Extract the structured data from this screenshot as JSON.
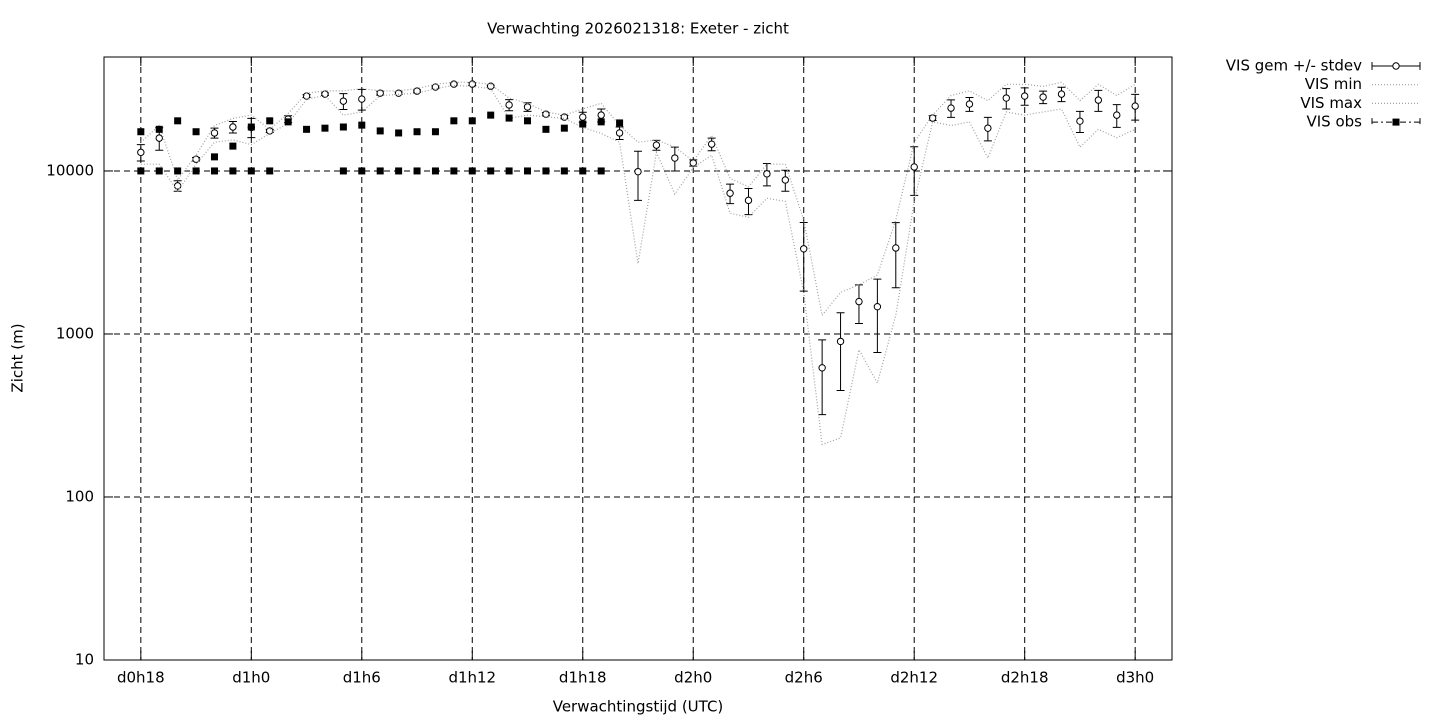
{
  "chart_data": {
    "type": "line",
    "title": "Verwachting 2026021318: Exeter - zicht",
    "xlabel": "Verwachtingstijd (UTC)",
    "ylabel": "Zicht (m)",
    "x": [
      18,
      19,
      20,
      21,
      22,
      23,
      24,
      25,
      26,
      27,
      28,
      29,
      30,
      31,
      32,
      33,
      34,
      35,
      36,
      37,
      38,
      39,
      40,
      41,
      42,
      43,
      44,
      45,
      46,
      47,
      48,
      49,
      50,
      51,
      52,
      53,
      54,
      55,
      56,
      57,
      58,
      59,
      60,
      61,
      62,
      63,
      64,
      65,
      66,
      67,
      68,
      69,
      70,
      71,
      72
    ],
    "xlim": [
      16,
      74
    ],
    "xticks": [
      {
        "value": 18,
        "label": "d0h18"
      },
      {
        "value": 24,
        "label": "d1h0"
      },
      {
        "value": 30,
        "label": "d1h6"
      },
      {
        "value": 36,
        "label": "d1h12"
      },
      {
        "value": 42,
        "label": "d1h18"
      },
      {
        "value": 48,
        "label": "d2h0"
      },
      {
        "value": 54,
        "label": "d2h6"
      },
      {
        "value": 60,
        "label": "d2h12"
      },
      {
        "value": 66,
        "label": "d2h18"
      },
      {
        "value": 72,
        "label": "d3h0"
      }
    ],
    "ylim": [
      10,
      50000
    ],
    "yticks": [
      10,
      100,
      1000,
      10000
    ],
    "ylog": true,
    "grid": true,
    "legend": "outside-top-right",
    "series": [
      {
        "name": "VIS gem +/- stdev",
        "color": "#000000",
        "style": "errorbars",
        "values": [
          13000,
          15900,
          8100,
          11800,
          17100,
          18600,
          18500,
          17600,
          20800,
          28800,
          29600,
          26800,
          27600,
          30000,
          30000,
          30900,
          32700,
          34100,
          34100,
          33100,
          25400,
          24700,
          22300,
          21400,
          21400,
          22000,
          17100,
          9900,
          14400,
          12000,
          11200,
          14600,
          7300,
          6600,
          9600,
          8800,
          3330,
          620,
          900,
          1580,
          1470,
          3370,
          10580,
          21100,
          24300,
          25700,
          18300,
          28000,
          28800,
          28400,
          29600,
          20200,
          27200,
          22000,
          25000
        ],
        "errors": [
          1500,
          2500,
          600,
          300,
          1200,
          1500,
          2500,
          400,
          1000,
          600,
          500,
          3000,
          4000,
          800,
          500,
          500,
          500,
          500,
          700,
          500,
          2000,
          1500,
          500,
          500,
          1500,
          2000,
          1500,
          3300,
          1000,
          2000,
          500,
          1300,
          1000,
          1200,
          1500,
          1300,
          1500,
          300,
          450,
          420,
          700,
          1450,
          3500,
          700,
          3000,
          2500,
          3000,
          4000,
          3500,
          2500,
          3000,
          3000,
          4000,
          3500,
          4500
        ]
      },
      {
        "name": "VIS min",
        "color": "#a0a0a0",
        "style": "dotted",
        "values": [
          11000,
          11000,
          7500,
          11000,
          15000,
          15500,
          14500,
          17000,
          19500,
          27500,
          29000,
          22000,
          23000,
          29000,
          29500,
          30000,
          32000,
          33500,
          33000,
          32000,
          21000,
          22000,
          21500,
          21000,
          18500,
          17000,
          15000,
          2700,
          13000,
          7200,
          10500,
          12500,
          5500,
          5200,
          6800,
          6500,
          1800,
          210,
          230,
          800,
          500,
          1300,
          6500,
          20000,
          19000,
          20000,
          12000,
          23000,
          22000,
          23000,
          24000,
          14000,
          18000,
          16000,
          18000
        ]
      },
      {
        "name": "VIS max",
        "color": "#a0a0a0",
        "style": "dotted",
        "values": [
          15000,
          19000,
          8800,
          12500,
          19000,
          21000,
          22000,
          18000,
          22500,
          30000,
          31000,
          31000,
          32000,
          31000,
          31000,
          32000,
          34000,
          35000,
          35000,
          34000,
          28000,
          26000,
          23000,
          22000,
          24000,
          26000,
          19000,
          15000,
          15500,
          14000,
          11500,
          16500,
          9000,
          8000,
          11000,
          11000,
          5000,
          1300,
          1800,
          2000,
          2300,
          5000,
          15000,
          22000,
          29000,
          31000,
          27000,
          34000,
          34000,
          33000,
          35000,
          27000,
          34000,
          29000,
          34000
        ]
      },
      {
        "name": "VIS obs",
        "color": "#000000",
        "style": "points",
        "x": [
          18,
          19,
          20,
          21,
          22,
          23,
          24,
          25,
          26,
          27,
          28,
          29,
          30,
          31,
          32,
          33,
          34,
          35,
          36,
          37,
          38,
          39,
          40,
          41,
          42,
          43,
          44,
          18,
          19,
          20,
          21,
          22,
          23,
          24,
          25,
          29,
          30,
          31,
          32,
          33,
          34,
          35,
          36,
          37,
          38,
          39,
          40,
          41,
          42,
          43
        ],
        "values": [
          17400,
          18000,
          20300,
          17400,
          12200,
          14200,
          18600,
          20300,
          20000,
          18000,
          18300,
          18600,
          19100,
          17600,
          17100,
          17400,
          17400,
          20300,
          20300,
          22000,
          21100,
          20300,
          18000,
          18300,
          19400,
          20000,
          19700,
          10000,
          10000,
          10000,
          10000,
          10000,
          10000,
          10000,
          10000,
          10000,
          10000,
          10000,
          10000,
          10000,
          10000,
          10000,
          10000,
          10000,
          10000,
          10000,
          10000,
          10000,
          10000,
          10000
        ]
      }
    ]
  }
}
